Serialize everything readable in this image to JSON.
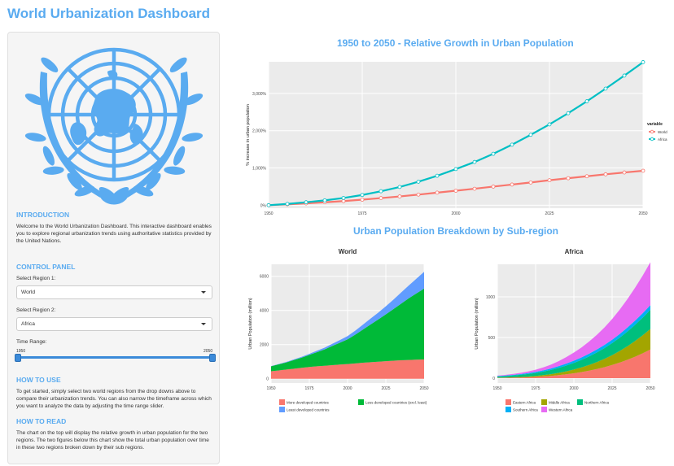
{
  "app": {
    "title": "World Urbanization Dashboard"
  },
  "sidebar": {
    "intro_title": "INTRODUCTION",
    "intro_text": "Welcome to the World Urbanization Dashboard. This interactive dashboard enables you to explore regional urbanization trends using authoritative statistics provided by the United Nations.",
    "control_title": "CONTROL PANEL",
    "region1_label": "Select Region 1:",
    "region1_value": "World",
    "region2_label": "Select Region 2:",
    "region2_value": "Africa",
    "time_label": "Time Range:",
    "time_min": "1950",
    "time_max": "2050",
    "howto_title": "HOW TO USE",
    "howto_text": "To get started, simply select two world regions from the drop downs above to compare their urbanization trends. You can also narrow the timeframe across which you want to analyze the data by adjusting the time range slider.",
    "read_title": "HOW TO READ",
    "read_text": "The chart on the top will display the relative growth in urban population for the two regions. The two figures below this chart show the total urban population over time in these two regions broken down by their sub regions."
  },
  "main": {
    "growth_title": "1950 to 2050 - Relative Growth in Urban Population",
    "breakdown_title": "Urban Population Breakdown by Sub-region"
  },
  "chart_data": [
    {
      "type": "line",
      "title": "1950 to 2050 - Relative Growth in Urban Population",
      "xlabel": "",
      "ylabel": "% increase in urban population",
      "x": [
        1950,
        1955,
        1960,
        1965,
        1970,
        1975,
        1980,
        1985,
        1990,
        1995,
        2000,
        2005,
        2010,
        2015,
        2020,
        2025,
        2030,
        2035,
        2040,
        2045,
        2050
      ],
      "xticks": [
        1950,
        1975,
        2000,
        2025,
        2050
      ],
      "yticks": [
        0,
        1000,
        2000,
        3000
      ],
      "ytick_labels": [
        "0%",
        "1,000%",
        "2,000%",
        "3,000%"
      ],
      "xlim": [
        1950,
        2050
      ],
      "ylim": [
        -80,
        3850
      ],
      "legend_title": "variable",
      "legend_position": "right",
      "series": [
        {
          "name": "World",
          "color": "#f8766d",
          "values": [
            0,
            24,
            49,
            79,
            111,
            149,
            191,
            235,
            285,
            338,
            389,
            442,
            500,
            555,
            610,
            670,
            725,
            777,
            830,
            879,
            925
          ]
        },
        {
          "name": "Africa",
          "color": "#00bfc4",
          "values": [
            0,
            35,
            80,
            130,
            195,
            275,
            375,
            490,
            630,
            790,
            970,
            1160,
            1380,
            1625,
            1890,
            2170,
            2470,
            2790,
            3130,
            3480,
            3840
          ]
        }
      ]
    },
    {
      "type": "area",
      "title": "World",
      "xlabel": "",
      "ylabel": "Urban Population (million)",
      "x": [
        1950,
        1955,
        1960,
        1965,
        1970,
        1975,
        1980,
        1985,
        1990,
        1995,
        2000,
        2005,
        2010,
        2015,
        2020,
        2025,
        2030,
        2035,
        2040,
        2045,
        2050
      ],
      "xticks": [
        1950,
        1975,
        2000,
        2025,
        2050
      ],
      "yticks": [
        0,
        2000,
        4000,
        6000
      ],
      "xlim": [
        1950,
        2050
      ],
      "ylim": [
        -250,
        6700
      ],
      "stacked": true,
      "legend_position": "bottom",
      "series": [
        {
          "name": "More developed countries",
          "color": "#f8766d",
          "values": [
            440,
            490,
            540,
            590,
            640,
            690,
            730,
            760,
            800,
            830,
            860,
            900,
            940,
            970,
            1000,
            1030,
            1060,
            1080,
            1100,
            1120,
            1130
          ]
        },
        {
          "name": "Less developed countries (excl. least)",
          "color": "#00ba38",
          "values": [
            290,
            355,
            420,
            510,
            600,
            710,
            830,
            960,
            1120,
            1280,
            1450,
            1680,
            1940,
            2210,
            2470,
            2740,
            3020,
            3320,
            3610,
            3880,
            4150
          ]
        },
        {
          "name": "Least developed countries",
          "color": "#619cff",
          "values": [
            15,
            20,
            25,
            35,
            45,
            60,
            80,
            100,
            125,
            155,
            190,
            235,
            285,
            340,
            400,
            475,
            555,
            650,
            750,
            860,
            980
          ]
        }
      ]
    },
    {
      "type": "area",
      "title": "Africa",
      "xlabel": "",
      "ylabel": "Urban Population (million)",
      "x": [
        1950,
        1955,
        1960,
        1965,
        1970,
        1975,
        1980,
        1985,
        1990,
        1995,
        2000,
        2005,
        2010,
        2015,
        2020,
        2025,
        2030,
        2035,
        2040,
        2045,
        2050
      ],
      "xticks": [
        1950,
        1975,
        2000,
        2025,
        2050
      ],
      "yticks": [
        0,
        500,
        1000
      ],
      "xlim": [
        1950,
        2050
      ],
      "ylim": [
        -60,
        1400
      ],
      "stacked": true,
      "legend_position": "bottom",
      "series": [
        {
          "name": "Eastern Africa",
          "color": "#f8766d",
          "values": [
            3,
            4,
            6,
            8,
            11,
            15,
            21,
            28,
            37,
            48,
            60,
            75,
            92,
            112,
            135,
            162,
            192,
            226,
            264,
            306,
            352
          ]
        },
        {
          "name": "Middle Africa",
          "color": "#a3a500",
          "values": [
            3,
            4,
            5,
            7,
            9,
            12,
            16,
            21,
            28,
            36,
            46,
            57,
            70,
            85,
            102,
            121,
            143,
            167,
            193,
            222,
            253
          ]
        },
        {
          "name": "Northern Africa",
          "color": "#00bf7d",
          "values": [
            13,
            17,
            21,
            26,
            31,
            37,
            44,
            52,
            61,
            71,
            82,
            93,
            106,
            119,
            133,
            148,
            164,
            181,
            199,
            217,
            236
          ]
        },
        {
          "name": "Southern Africa",
          "color": "#00b0f6",
          "values": [
            6,
            7,
            8,
            9,
            11,
            13,
            15,
            18,
            21,
            24,
            27,
            30,
            33,
            36,
            39,
            42,
            45,
            48,
            51,
            54,
            57
          ]
        },
        {
          "name": "Western Africa",
          "color": "#e76bf3",
          "values": [
            6,
            8,
            11,
            15,
            20,
            27,
            36,
            47,
            62,
            80,
            100,
            123,
            150,
            180,
            215,
            255,
            300,
            350,
            405,
            464,
            528
          ]
        }
      ]
    }
  ]
}
